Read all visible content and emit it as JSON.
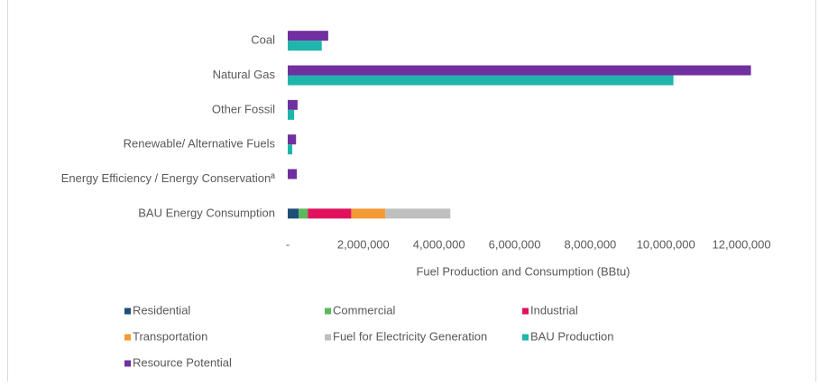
{
  "chart_data": {
    "type": "bar",
    "orientation": "horizontal",
    "categories": [
      "Coal",
      "Natural Gas",
      "Other Fossil",
      "Renewable/ Alternative Fuels",
      "Energy Efficiency / Energy Conservationª",
      "BAU Energy Consumption"
    ],
    "series": [
      {
        "name": "Residential",
        "color": "#1f4e79",
        "values": [
          null,
          null,
          null,
          null,
          null,
          290000
        ]
      },
      {
        "name": "Commercial",
        "color": "#5cb85c",
        "values": [
          null,
          null,
          null,
          null,
          null,
          240000
        ]
      },
      {
        "name": "Industrial",
        "color": "#e0115f",
        "values": [
          null,
          null,
          null,
          null,
          null,
          1150000
        ]
      },
      {
        "name": "Transportation",
        "color": "#f39a35",
        "values": [
          null,
          null,
          null,
          null,
          null,
          900000
        ]
      },
      {
        "name": "Fuel for Electricity Generation",
        "color": "#bfbfbf",
        "values": [
          null,
          null,
          null,
          null,
          null,
          1720000
        ]
      },
      {
        "name": "BAU Production",
        "color": "#1fb5ad",
        "values": [
          900000,
          10200000,
          170000,
          120000,
          null,
          null
        ]
      },
      {
        "name": "Resource Potential",
        "color": "#7030a0",
        "values": [
          1070000,
          12250000,
          260000,
          220000,
          240000,
          null
        ]
      }
    ],
    "x_label": "Fuel Production and Consumption (BBtu)",
    "xlim": [
      0,
      13000000
    ],
    "xticks": [
      {
        "value": 0,
        "label": "-"
      },
      {
        "value": 2000000,
        "label": "2,000,000"
      },
      {
        "value": 4000000,
        "label": "4,000,000"
      },
      {
        "value": 6000000,
        "label": "6,000,000"
      },
      {
        "value": 8000000,
        "label": "8,000,000"
      },
      {
        "value": 10000000,
        "label": "10,000,000"
      },
      {
        "value": 12000000,
        "label": "12,000,000"
      }
    ],
    "grid": false,
    "legend": "bottom"
  }
}
